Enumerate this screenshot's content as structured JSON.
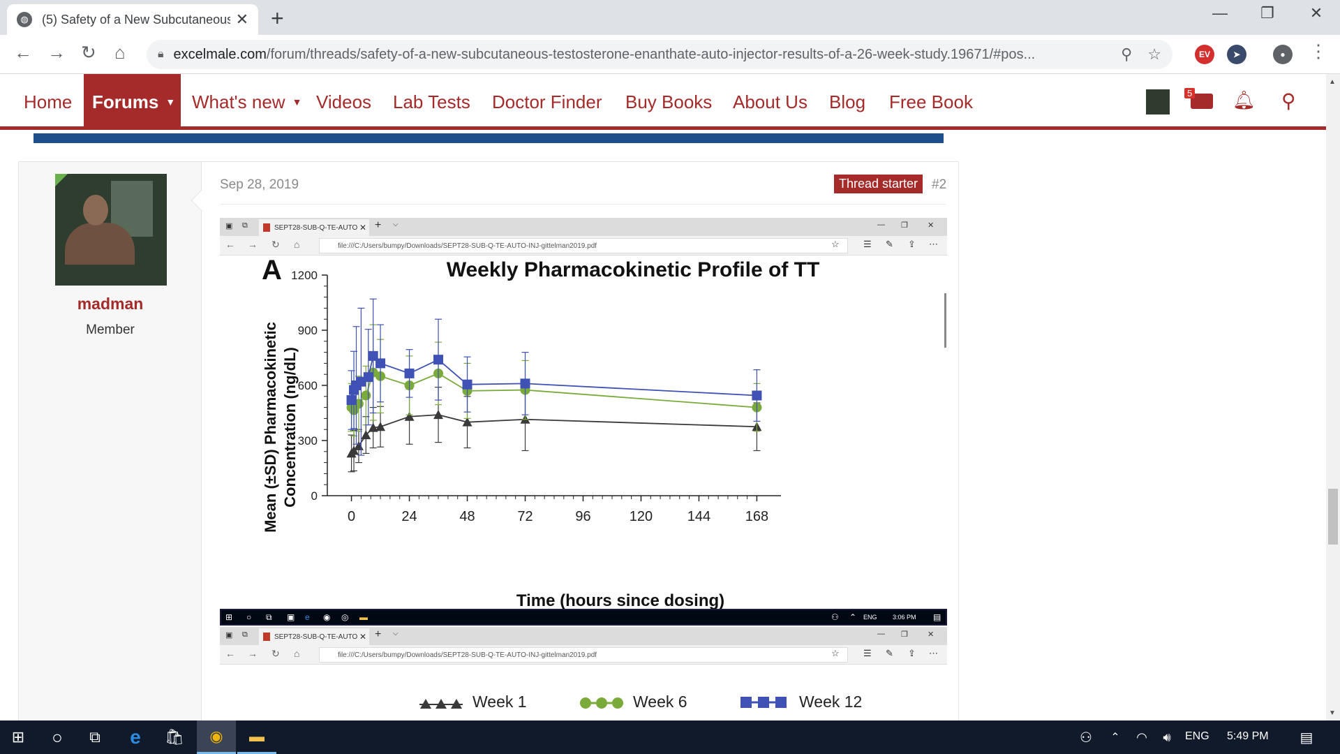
{
  "browser": {
    "tab_title": "(5) Safety of a New Subcutaneous",
    "tab_close": "✕",
    "new_tab": "+",
    "url_domain": "excelmale.com",
    "url_path": "/forum/threads/safety-of-a-new-subcutaneous-testosterone-enanthate-auto-injector-results-of-a-26-week-study.19671/#pos...",
    "window_controls": [
      "—",
      "❐",
      "✕"
    ]
  },
  "site_nav": {
    "items": [
      "Home",
      "Forums",
      "What's new",
      "Videos",
      "Lab Tests",
      "Doctor Finder",
      "Buy Books",
      "About Us",
      "Blog",
      "Free Book"
    ],
    "active": "Forums",
    "notification_count": "5"
  },
  "post": {
    "username": "madman",
    "user_role": "Member",
    "date": "Sep 28, 2019",
    "thread_starter_label": "Thread starter",
    "post_number": "#2"
  },
  "embedded_browser": {
    "tab_title": "SEPT28-SUB-Q-TE-AUTO",
    "url": "file:///C:/Users/bumpy/Downloads/SEPT28-SUB-Q-TE-AUTO-INJ-gittelman2019.pdf",
    "taskbar_lang": "ENG",
    "taskbar_time": "3:06 PM"
  },
  "chart_data": {
    "type": "line",
    "panel_label": "A",
    "title": "Weekly Pharmacokinetic Profile of TT",
    "xlabel": "Time (hours since dosing)",
    "ylabel_line1": "Mean (±SD) Pharmacokinetic",
    "ylabel_line2": "Concentration (ng/dL)",
    "xlim": [
      -10,
      178
    ],
    "ylim": [
      0,
      1200
    ],
    "x_ticks": [
      0,
      24,
      48,
      72,
      96,
      120,
      144,
      168
    ],
    "y_ticks": [
      0,
      300,
      600,
      900,
      1200
    ],
    "series": [
      {
        "name": "Week 1",
        "color": "#3a3a3a",
        "marker": "triangle",
        "points": [
          {
            "x": 0,
            "y": 230,
            "err": 100
          },
          {
            "x": 1,
            "y": 245,
            "err": 110
          },
          {
            "x": 3,
            "y": 270,
            "err": 90
          },
          {
            "x": 6,
            "y": 330,
            "err": 100
          },
          {
            "x": 9,
            "y": 370,
            "err": 110
          },
          {
            "x": 12,
            "y": 375,
            "err": 110
          },
          {
            "x": 24,
            "y": 430,
            "err": 150
          },
          {
            "x": 36,
            "y": 440,
            "err": 150
          },
          {
            "x": 48,
            "y": 400,
            "err": 140
          },
          {
            "x": 72,
            "y": 415,
            "err": 170
          },
          {
            "x": 168,
            "y": 375,
            "err": 130
          }
        ]
      },
      {
        "name": "Week 6",
        "color": "#7aab3a",
        "marker": "circle",
        "points": [
          {
            "x": 0,
            "y": 480,
            "err": 130
          },
          {
            "x": 1,
            "y": 465,
            "err": 140
          },
          {
            "x": 3,
            "y": 500,
            "err": 150
          },
          {
            "x": 6,
            "y": 545,
            "err": 160
          },
          {
            "x": 9,
            "y": 670,
            "err": 260
          },
          {
            "x": 12,
            "y": 650,
            "err": 200
          },
          {
            "x": 24,
            "y": 600,
            "err": 160
          },
          {
            "x": 36,
            "y": 665,
            "err": 170
          },
          {
            "x": 48,
            "y": 570,
            "err": 150
          },
          {
            "x": 72,
            "y": 575,
            "err": 160
          },
          {
            "x": 168,
            "y": 480,
            "err": 130
          }
        ]
      },
      {
        "name": "Week 12",
        "color": "#3f51b5",
        "marker": "square",
        "points": [
          {
            "x": 0,
            "y": 520,
            "err": 160
          },
          {
            "x": 1,
            "y": 575,
            "err": 210
          },
          {
            "x": 2,
            "y": 600,
            "err": 320
          },
          {
            "x": 4,
            "y": 620,
            "err": 400
          },
          {
            "x": 7,
            "y": 645,
            "err": 260
          },
          {
            "x": 9,
            "y": 760,
            "err": 310
          },
          {
            "x": 12,
            "y": 720,
            "err": 210
          },
          {
            "x": 24,
            "y": 665,
            "err": 130
          },
          {
            "x": 36,
            "y": 740,
            "err": 220
          },
          {
            "x": 48,
            "y": 605,
            "err": 150
          },
          {
            "x": 72,
            "y": 610,
            "err": 170
          },
          {
            "x": 168,
            "y": 545,
            "err": 140
          }
        ]
      }
    ],
    "legend_placement": "bottom",
    "grid": false
  },
  "taskbar": {
    "lang": "ENG",
    "time": "5:49 PM"
  },
  "colors": {
    "brand": "#a52a2a",
    "chrome_bg": "#dee1e6",
    "taskbar": "#101a2b"
  }
}
